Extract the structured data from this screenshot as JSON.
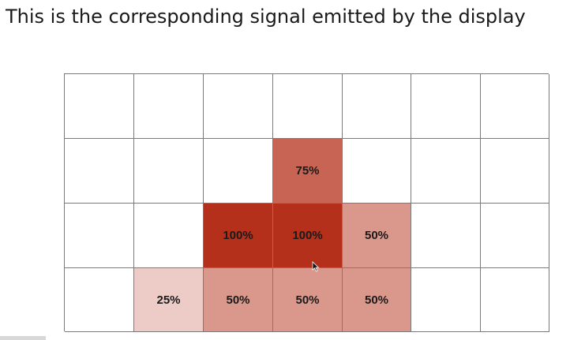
{
  "title": "This is the corresponding signal emitted by the display",
  "grid": {
    "rows": 4,
    "cols": 7,
    "intensity_color": "#b5301a",
    "empty_color": "#ffffff",
    "cells": [
      {
        "row": 1,
        "col": 3,
        "label": "75%",
        "intensity": 0.75
      },
      {
        "row": 2,
        "col": 2,
        "label": "100%",
        "intensity": 1.0
      },
      {
        "row": 2,
        "col": 3,
        "label": "100%",
        "intensity": 1.0
      },
      {
        "row": 2,
        "col": 4,
        "label": "50%",
        "intensity": 0.5
      },
      {
        "row": 3,
        "col": 1,
        "label": "25%",
        "intensity": 0.25
      },
      {
        "row": 3,
        "col": 2,
        "label": "50%",
        "intensity": 0.5
      },
      {
        "row": 3,
        "col": 3,
        "label": "50%",
        "intensity": 0.5
      },
      {
        "row": 3,
        "col": 4,
        "label": "50%",
        "intensity": 0.5
      }
    ]
  }
}
